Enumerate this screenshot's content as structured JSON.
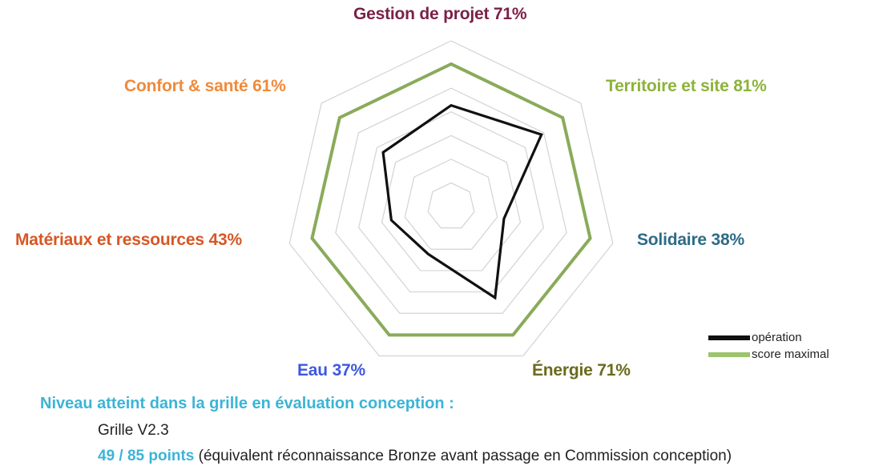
{
  "chart_data": {
    "type": "radar",
    "axes": [
      {
        "label": "Gestion de projet",
        "percent_text": "71%",
        "color": "#7a2148"
      },
      {
        "label": "Territoire et site",
        "percent_text": "81%",
        "color": "#8db33a"
      },
      {
        "label": "Solidaire",
        "percent_text": "38%",
        "color": "#2d6b86"
      },
      {
        "label": "Énergie",
        "percent_text": "71%",
        "color": "#6b6a1c"
      },
      {
        "label": "Eau",
        "percent_text": "37%",
        "color": "#3f58df"
      },
      {
        "label": "Matériaux et ressources",
        "percent_text": "43%",
        "color": "#d65725"
      },
      {
        "label": "Confort & santé",
        "percent_text": "61%",
        "color": "#f08a3a"
      }
    ],
    "series": [
      {
        "name": "opération",
        "color": "#111111",
        "values": [
          71,
          81,
          38,
          71,
          37,
          43,
          61
        ]
      },
      {
        "name": "score maximal",
        "color": "#8aab5a",
        "values": [
          100,
          100,
          100,
          100,
          100,
          100,
          100
        ]
      }
    ],
    "range": [
      0,
      100
    ],
    "grid_rings": 7,
    "legend_position": "bottom-right"
  },
  "legend": {
    "operation_label": "opération",
    "operation_color": "#111111",
    "max_label": "score maximal",
    "max_color": "#9cc46a"
  },
  "footer": {
    "title": "Niveau atteint dans la grille en évaluation conception :",
    "title_color": "#3cb4d6",
    "grid_version": "Grille V2.3",
    "points": "49 / 85 points",
    "points_color": "#3cb4d6",
    "points_note": " (équivalent réconnaissance Bronze avant passage en Commission conception)"
  }
}
